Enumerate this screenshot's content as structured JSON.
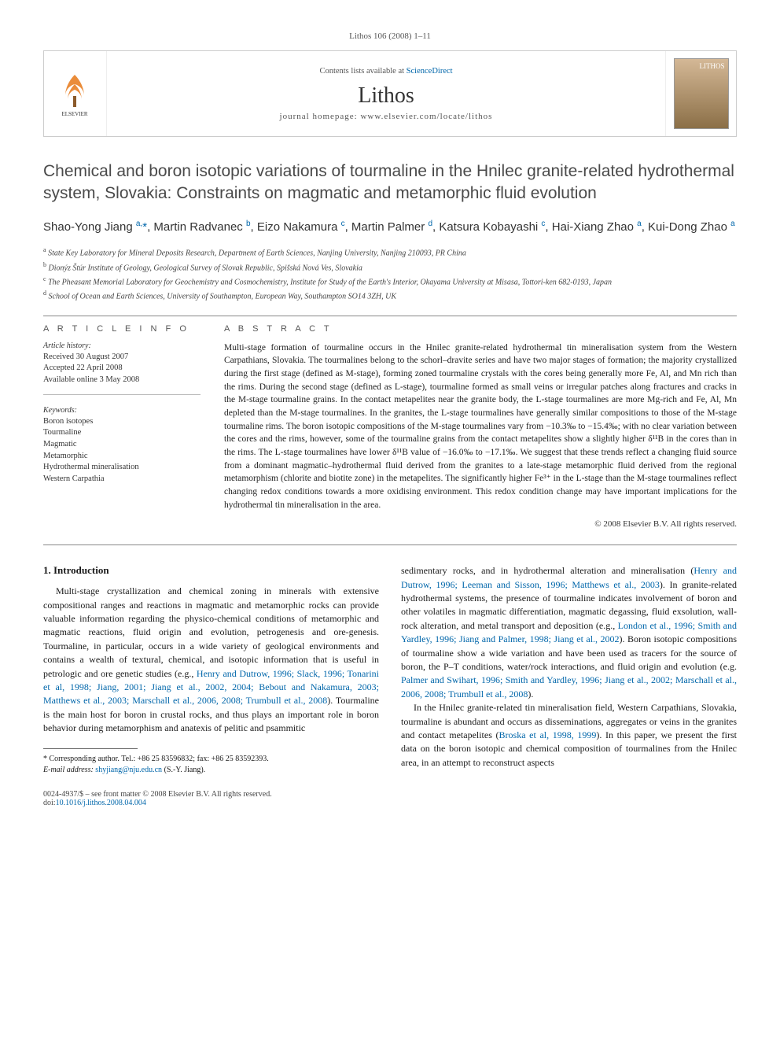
{
  "header": {
    "running_head": "Lithos 106 (2008) 1–11",
    "contents_prefix": "Contents lists available at ",
    "contents_link": "ScienceDirect",
    "journal_name": "Lithos",
    "homepage_label": "journal homepage: www.elsevier.com/locate/lithos",
    "cover_label": "LITHOS"
  },
  "article": {
    "title": "Chemical and boron isotopic variations of tourmaline in the Hnilec granite-related hydrothermal system, Slovakia: Constraints on magmatic and metamorphic fluid evolution",
    "authors_html": "Shao-Yong Jiang <sup class='author-sup'>a,</sup><span class='author-star'>*</span>, Martin Radvanec <sup class='author-sup'>b</sup>, Eizo Nakamura <sup class='author-sup'>c</sup>, Martin Palmer <sup class='author-sup'>d</sup>, Katsura Kobayashi <sup class='author-sup'>c</sup>, Hai-Xiang Zhao <sup class='author-sup'>a</sup>, Kui-Dong Zhao <sup class='author-sup'>a</sup>"
  },
  "affiliations": [
    {
      "sup": "a",
      "text": "State Key Laboratory for Mineral Deposits Research, Department of Earth Sciences, Nanjing University, Nanjing 210093, PR China"
    },
    {
      "sup": "b",
      "text": "Dionýz Štúr Institute of Geology, Geological Survey of Slovak Republic, Spišská Nová Ves, Slovakia"
    },
    {
      "sup": "c",
      "text": "The Pheasant Memorial Laboratory for Geochemistry and Cosmochemistry, Institute for Study of the Earth's Interior, Okayama University at Misasa, Tottori-ken 682-0193, Japan"
    },
    {
      "sup": "d",
      "text": "School of Ocean and Earth Sciences, University of Southampton, European Way, Southampton SO14 3ZH, UK"
    }
  ],
  "info": {
    "article_info_heading": "A R T I C L E   I N F O",
    "history_heading": "Article history:",
    "received": "Received 30 August 2007",
    "accepted": "Accepted 22 April 2008",
    "online": "Available online 3 May 2008",
    "keywords_heading": "Keywords:",
    "keywords": [
      "Boron isotopes",
      "Tourmaline",
      "Magmatic",
      "Metamorphic",
      "Hydrothermal mineralisation",
      "Western Carpathia"
    ]
  },
  "abstract": {
    "heading": "A B S T R A C T",
    "text": "Multi-stage formation of tourmaline occurs in the Hnilec granite-related hydrothermal tin mineralisation system from the Western Carpathians, Slovakia. The tourmalines belong to the schorl–dravite series and have two major stages of formation; the majority crystallized during the first stage (defined as M-stage), forming zoned tourmaline crystals with the cores being generally more Fe, Al, and Mn rich than the rims. During the second stage (defined as L-stage), tourmaline formed as small veins or irregular patches along fractures and cracks in the M-stage tourmaline grains. In the contact metapelites near the granite body, the L-stage tourmalines are more Mg-rich and Fe, Al, Mn depleted than the M-stage tourmalines. In the granites, the L-stage tourmalines have generally similar compositions to those of the M-stage tourmaline rims. The boron isotopic compositions of the M-stage tourmalines vary from −10.3‰ to −15.4‰; with no clear variation between the cores and the rims, however, some of the tourmaline grains from the contact metapelites show a slightly higher δ¹¹B in the cores than in the rims. The L-stage tourmalines have lower δ¹¹B value of −16.0‰ to −17.1‰. We suggest that these trends reflect a changing fluid source from a dominant magmatic–hydrothermal fluid derived from the granites to a late-stage metamorphic fluid derived from the regional metamorphism (chlorite and biotite zone) in the metapelites. The significantly higher Fe³⁺ in the L-stage than the M-stage tourmalines reflect changing redox conditions towards a more oxidising environment. This redox condition change may have important implications for the hydrothermal tin mineralisation in the area.",
    "copyright": "© 2008 Elsevier B.V. All rights reserved."
  },
  "body": {
    "section1_heading": "1. Introduction",
    "col1_html": "Multi-stage crystallization and chemical zoning in minerals with extensive compositional ranges and reactions in magmatic and metamorphic rocks can provide valuable information regarding the physico-chemical conditions of metamorphic and magmatic reactions, fluid origin and evolution, petrogenesis and ore-genesis. Tourmaline, in particular, occurs in a wide variety of geological environments and contains a wealth of textural, chemical, and isotopic information that is useful in petrologic and ore genetic studies (e.g., <a class='ref'>Henry and Dutrow, 1996; Slack, 1996; Tonarini et al, 1998; Jiang, 2001; Jiang et al., 2002, 2004; Bebout and Nakamura, 2003; Matthews et al., 2003; Marschall et al., 2006, 2008; Trumbull et al., 2008</a>). Tourmaline is the main host for boron in crustal rocks, and thus plays an important role in boron behavior during metamorphism and anatexis of pelitic and psammitic",
    "col2_html": "sedimentary rocks, and in hydrothermal alteration and mineralisation (<a class='ref'>Henry and Dutrow, 1996; Leeman and Sisson, 1996; Matthews et al., 2003</a>). In granite-related hydrothermal systems, the presence of tourmaline indicates involvement of boron and other volatiles in magmatic differentiation, magmatic degassing, fluid exsolution, wall-rock alteration, and metal transport and deposition (e.g., <a class='ref'>London et al., 1996; Smith and Yardley, 1996; Jiang and Palmer, 1998; Jiang et al., 2002</a>). Boron isotopic compositions of tourmaline show a wide variation and have been used as tracers for the source of boron, the P–T conditions, water/rock interactions, and fluid origin and evolution (e.g. <a class='ref'>Palmer and Swihart, 1996; Smith and Yardley, 1996; Jiang et al., 2002; Marschall et al., 2006, 2008; Trumbull et al., 2008</a>).",
    "col2_p2_html": "In the Hnilec granite-related tin mineralisation field, Western Carpathians, Slovakia, tourmaline is abundant and occurs as disseminations, aggregates or veins in the granites and contact metapelites (<a class='ref'>Broska et al, 1998, 1999</a>). In this paper, we present the first data on the boron isotopic and chemical composition of tourmalines from the Hnilec area, in an attempt to reconstruct aspects"
  },
  "footnote": {
    "corresp": "* Corresponding author. Tel.: +86 25 83596832; fax: +86 25 83592393.",
    "email_label": "E-mail address:",
    "email": "shyjiang@nju.edu.cn",
    "email_author": "(S.-Y. Jiang)."
  },
  "footer": {
    "left_line1": "0024-4937/$ – see front matter © 2008 Elsevier B.V. All rights reserved.",
    "left_line2_label": "doi:",
    "doi": "10.1016/j.lithos.2008.04.004"
  },
  "colors": {
    "link": "#0066aa",
    "text": "#1a1a1a",
    "muted": "#555555",
    "rule": "#888888"
  }
}
